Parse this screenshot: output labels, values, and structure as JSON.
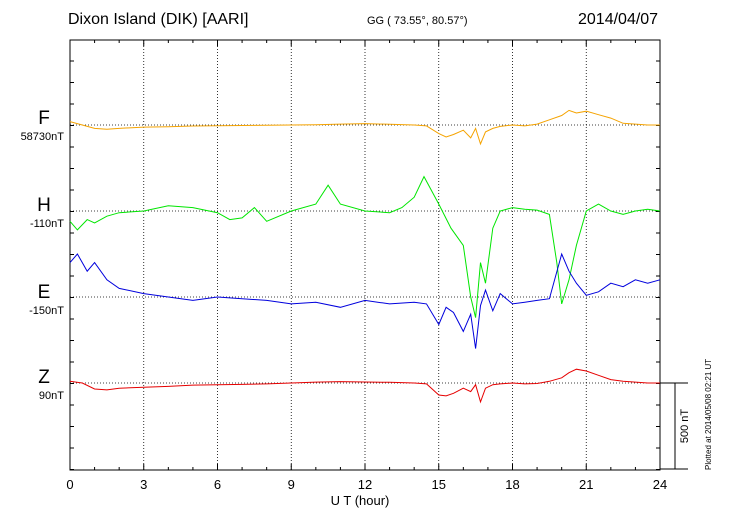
{
  "header": {
    "title": "Dixon Island (DIK)  [AARI]",
    "coords": "GG ( 73.55°,  80.57°)",
    "date": "2014/04/07"
  },
  "footer": {
    "plotted": "Plotted at 2014/05/08 02:21  UT",
    "scale_label": "500 nT"
  },
  "colors": {
    "F": "#f5a300",
    "H": "#00e600",
    "E": "#0000dd",
    "Z": "#e60000"
  },
  "chart_data": {
    "type": "line",
    "xlabel": "U T (hour)",
    "xlim": [
      0,
      24
    ],
    "xticks": [
      0,
      3,
      6,
      9,
      12,
      15,
      18,
      21,
      24
    ],
    "grid": true,
    "scale_bar_nT": 500,
    "series": [
      {
        "name": "F",
        "baseline_label": "58730nT",
        "x": [
          0,
          0.5,
          1,
          1.5,
          2,
          3,
          4,
          5,
          6,
          7,
          8,
          9,
          10,
          11,
          12,
          13,
          14,
          14.5,
          15,
          15.3,
          15.6,
          16,
          16.3,
          16.5,
          16.7,
          16.9,
          17.2,
          17.5,
          18,
          18.5,
          19,
          19.5,
          20,
          20.3,
          20.6,
          21,
          21.5,
          22,
          22.5,
          23,
          23.5,
          24
        ],
        "y": [
          20,
          0,
          -20,
          -25,
          -20,
          -12,
          -10,
          -6,
          -4,
          -3,
          -2,
          0,
          2,
          5,
          8,
          4,
          0,
          -5,
          -50,
          -70,
          -55,
          -30,
          -75,
          -20,
          -110,
          -40,
          -20,
          -8,
          0,
          -5,
          5,
          30,
          55,
          85,
          70,
          80,
          60,
          40,
          10,
          5,
          0,
          0
        ]
      },
      {
        "name": "H",
        "baseline_label": "-110nT",
        "x": [
          0,
          0.3,
          0.7,
          1,
          1.5,
          2,
          3,
          4,
          5,
          6,
          6.5,
          7,
          7.5,
          8,
          9,
          10,
          10.5,
          11,
          12,
          13,
          13.5,
          14,
          14.4,
          14.7,
          15,
          15.5,
          16,
          16.3,
          16.5,
          16.7,
          16.9,
          17.2,
          17.5,
          18,
          18.5,
          19,
          19.5,
          19.8,
          20,
          20.3,
          20.6,
          21,
          21.5,
          22,
          22.5,
          23,
          23.5,
          24
        ],
        "y": [
          -60,
          -110,
          -50,
          -70,
          -30,
          -10,
          0,
          30,
          20,
          -10,
          -50,
          -40,
          20,
          -60,
          0,
          40,
          150,
          40,
          0,
          -10,
          20,
          80,
          200,
          120,
          40,
          -100,
          -200,
          -500,
          -620,
          -300,
          -420,
          -100,
          0,
          20,
          10,
          5,
          -20,
          -300,
          -540,
          -400,
          -200,
          0,
          40,
          0,
          -20,
          0,
          10,
          0
        ]
      },
      {
        "name": "E",
        "baseline_label": "-150nT",
        "x": [
          0,
          0.3,
          0.7,
          1,
          1.5,
          2,
          3,
          4,
          5,
          6,
          7,
          8,
          9,
          10,
          11,
          12,
          13,
          14,
          14.5,
          15,
          15.3,
          15.6,
          16,
          16.3,
          16.5,
          16.7,
          16.9,
          17.2,
          17.5,
          18,
          18.5,
          19,
          19.5,
          20,
          20.3,
          20.6,
          21,
          21.5,
          22,
          22.5,
          23,
          23.5,
          24
        ],
        "y": [
          200,
          250,
          150,
          200,
          100,
          50,
          20,
          0,
          -20,
          0,
          -10,
          -20,
          -40,
          -30,
          -60,
          -20,
          -40,
          -30,
          -40,
          -160,
          -60,
          -90,
          -200,
          -100,
          -300,
          -50,
          40,
          -80,
          20,
          -40,
          -30,
          -20,
          -10,
          250,
          150,
          80,
          10,
          30,
          80,
          60,
          100,
          80,
          100
        ]
      },
      {
        "name": "Z",
        "baseline_label": "90nT",
        "x": [
          0,
          0.5,
          1,
          1.5,
          2,
          3,
          4,
          5,
          6,
          7,
          8,
          9,
          10,
          11,
          12,
          13,
          14,
          14.5,
          15,
          15.3,
          15.6,
          16,
          16.3,
          16.5,
          16.7,
          16.9,
          17.2,
          17.5,
          18,
          18.5,
          19,
          19.5,
          20,
          20.3,
          20.6,
          21,
          21.5,
          22,
          22.5,
          23,
          23.5,
          24
        ],
        "y": [
          10,
          0,
          -35,
          -40,
          -30,
          -25,
          -20,
          -12,
          -10,
          -8,
          -5,
          0,
          5,
          8,
          6,
          4,
          0,
          -5,
          -70,
          -75,
          -60,
          -30,
          -50,
          -10,
          -110,
          -30,
          -10,
          -5,
          0,
          -5,
          -3,
          10,
          30,
          60,
          80,
          70,
          45,
          20,
          10,
          5,
          0,
          0
        ]
      }
    ]
  }
}
